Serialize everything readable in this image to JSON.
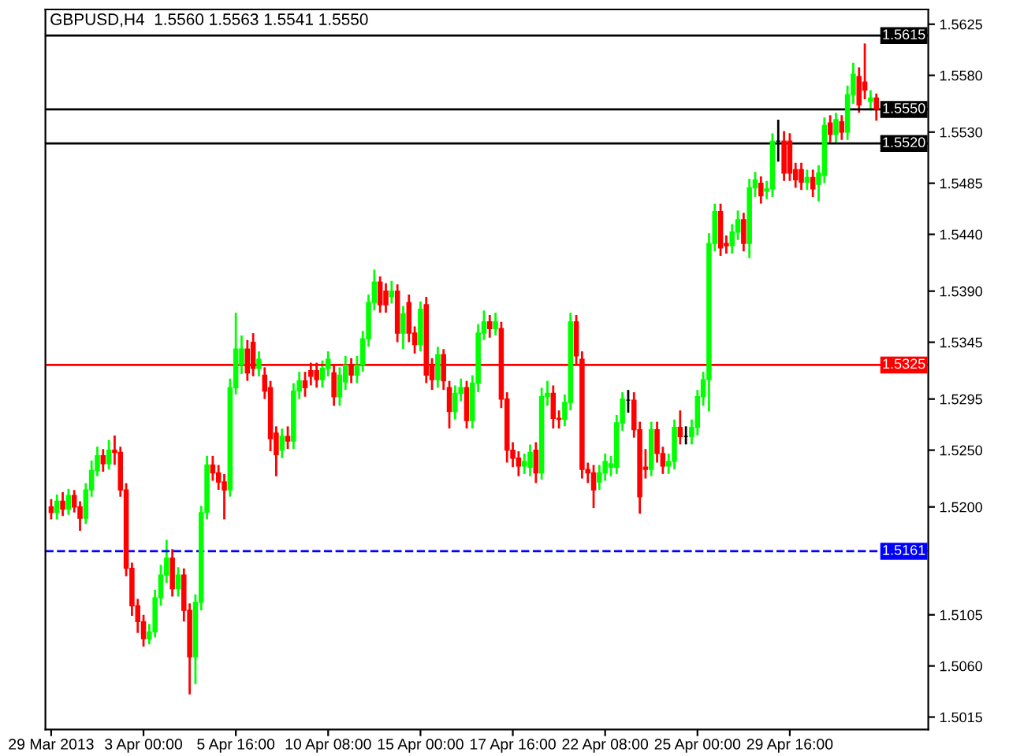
{
  "chart_data": {
    "type": "candlestick",
    "title": "GBPUSD,H4  1.5560 1.5563 1.5541 1.5550",
    "categories": [
      "29 Mar 2013",
      null,
      null,
      null,
      null,
      null,
      null,
      null,
      null,
      null,
      null,
      null,
      null,
      null,
      null,
      null,
      "3 Apr 00:00",
      null,
      null,
      null,
      null,
      null,
      null,
      null,
      null,
      null,
      null,
      null,
      null,
      null,
      null,
      null,
      "5 Apr 16:00",
      null,
      null,
      null,
      null,
      null,
      null,
      null,
      null,
      null,
      null,
      null,
      null,
      null,
      null,
      null,
      "10 Apr 08:00",
      null,
      null,
      null,
      null,
      null,
      null,
      null,
      null,
      null,
      null,
      null,
      null,
      null,
      null,
      null,
      "15 Apr 00:00",
      null,
      null,
      null,
      null,
      null,
      null,
      null,
      null,
      null,
      null,
      null,
      null,
      null,
      null,
      null,
      "17 Apr 16:00",
      null,
      null,
      null,
      null,
      null,
      null,
      null,
      null,
      null,
      null,
      null,
      null,
      null,
      null,
      null,
      "22 Apr 08:00",
      null,
      null,
      null,
      null,
      null,
      null,
      null,
      null,
      null,
      null,
      null,
      null,
      null,
      null,
      null,
      "25 Apr 00:00",
      null,
      null,
      null,
      null,
      null,
      null,
      null,
      null,
      null,
      null,
      null,
      null,
      null,
      null,
      null,
      "29 Apr 16:00",
      null,
      null,
      null,
      null,
      null,
      null,
      null,
      null,
      null,
      null,
      null,
      null,
      null,
      null,
      null
    ],
    "ohlc": [
      [
        1.52,
        1.5206,
        1.519,
        1.5195
      ],
      [
        1.5195,
        1.521,
        1.519,
        1.5205
      ],
      [
        1.5205,
        1.5212,
        1.5193,
        1.5198
      ],
      [
        1.5198,
        1.5215,
        1.5194,
        1.521
      ],
      [
        1.521,
        1.5214,
        1.5196,
        1.52
      ],
      [
        1.52,
        1.5204,
        1.518,
        1.519
      ],
      [
        1.519,
        1.522,
        1.5186,
        1.5215
      ],
      [
        1.5215,
        1.524,
        1.521,
        1.5232
      ],
      [
        1.5232,
        1.5252,
        1.5228,
        1.5245
      ],
      [
        1.5245,
        1.525,
        1.5232,
        1.5238
      ],
      [
        1.5238,
        1.5258,
        1.5234,
        1.525
      ],
      [
        1.525,
        1.5262,
        1.5238,
        1.5248
      ],
      [
        1.5248,
        1.5252,
        1.521,
        1.5215
      ],
      [
        1.5215,
        1.522,
        1.514,
        1.5146
      ],
      [
        1.5146,
        1.515,
        1.5105,
        1.5113
      ],
      [
        1.5113,
        1.5118,
        1.509,
        1.5099
      ],
      [
        1.5099,
        1.5104,
        1.5078,
        1.5084
      ],
      [
        1.5084,
        1.5096,
        1.508,
        1.509
      ],
      [
        1.509,
        1.5126,
        1.5086,
        1.512
      ],
      [
        1.512,
        1.5148,
        1.5114,
        1.514
      ],
      [
        1.514,
        1.517,
        1.5134,
        1.5155
      ],
      [
        1.5155,
        1.5162,
        1.5122,
        1.5128
      ],
      [
        1.5128,
        1.5146,
        1.5122,
        1.514
      ],
      [
        1.514,
        1.5145,
        1.51,
        1.5109
      ],
      [
        1.5109,
        1.5114,
        1.5036,
        1.5068
      ],
      [
        1.5068,
        1.5122,
        1.5045,
        1.5116
      ],
      [
        1.5116,
        1.52,
        1.511,
        1.5195
      ],
      [
        1.5195,
        1.5244,
        1.519,
        1.5237
      ],
      [
        1.5237,
        1.5244,
        1.5224,
        1.523
      ],
      [
        1.523,
        1.5236,
        1.5216,
        1.5222
      ],
      [
        1.5222,
        1.5228,
        1.519,
        1.5215
      ],
      [
        1.5215,
        1.5312,
        1.521,
        1.5305
      ],
      [
        1.5305,
        1.537,
        1.53,
        1.5339
      ],
      [
        1.5325,
        1.535,
        1.5318,
        1.5339
      ],
      [
        1.5339,
        1.5346,
        1.5312,
        1.5318
      ],
      [
        1.5345,
        1.5352,
        1.5316,
        1.5322
      ],
      [
        1.5322,
        1.5336,
        1.5316,
        1.533
      ],
      [
        1.5316,
        1.5322,
        1.5296,
        1.5302
      ],
      [
        1.5305,
        1.531,
        1.525,
        1.526
      ],
      [
        1.5265,
        1.527,
        1.5228,
        1.5246
      ],
      [
        1.525,
        1.5268,
        1.5244,
        1.5262
      ],
      [
        1.5262,
        1.527,
        1.5252,
        1.5258
      ],
      [
        1.5258,
        1.5308,
        1.5252,
        1.5302
      ],
      [
        1.5302,
        1.5318,
        1.5296,
        1.5311
      ],
      [
        1.5311,
        1.5318,
        1.5298,
        1.5305
      ],
      [
        1.532,
        1.5326,
        1.5308,
        1.5315
      ],
      [
        1.532,
        1.5326,
        1.5306,
        1.5312
      ],
      [
        1.5312,
        1.5328,
        1.5306,
        1.5322
      ],
      [
        1.5322,
        1.5336,
        1.5316,
        1.533
      ],
      [
        1.5318,
        1.5324,
        1.529,
        1.5297
      ],
      [
        1.5297,
        1.5322,
        1.529,
        1.5316
      ],
      [
        1.531,
        1.5332,
        1.5304,
        1.5325
      ],
      [
        1.5325,
        1.533,
        1.531,
        1.5316
      ],
      [
        1.5316,
        1.5332,
        1.531,
        1.5325
      ],
      [
        1.5325,
        1.5354,
        1.532,
        1.5348
      ],
      [
        1.5348,
        1.5386,
        1.5342,
        1.538
      ],
      [
        1.538,
        1.5408,
        1.5374,
        1.5398
      ],
      [
        1.5398,
        1.5402,
        1.5372,
        1.5378
      ],
      [
        1.539,
        1.5396,
        1.5372,
        1.5378
      ],
      [
        1.5385,
        1.5398,
        1.538,
        1.539
      ],
      [
        1.539,
        1.5395,
        1.5346,
        1.5353
      ],
      [
        1.5353,
        1.5376,
        1.534,
        1.537
      ],
      [
        1.538,
        1.5386,
        1.5346,
        1.5353
      ],
      [
        1.5353,
        1.5358,
        1.5336,
        1.5343
      ],
      [
        1.5343,
        1.538,
        1.5338,
        1.5374
      ],
      [
        1.5378,
        1.5384,
        1.531,
        1.5316
      ],
      [
        1.5325,
        1.533,
        1.5304,
        1.5312
      ],
      [
        1.5312,
        1.534,
        1.5306,
        1.5334
      ],
      [
        1.5334,
        1.5338,
        1.5304,
        1.5311
      ],
      [
        1.5305,
        1.531,
        1.527,
        1.5284
      ],
      [
        1.5284,
        1.5306,
        1.5278,
        1.53
      ],
      [
        1.53,
        1.5312,
        1.5294,
        1.5305
      ],
      [
        1.5305,
        1.531,
        1.527,
        1.5276
      ],
      [
        1.5276,
        1.5315,
        1.527,
        1.5309
      ],
      [
        1.5309,
        1.536,
        1.5302,
        1.5353
      ],
      [
        1.5353,
        1.5372,
        1.5348,
        1.5363
      ],
      [
        1.5363,
        1.5368,
        1.535,
        1.5357
      ],
      [
        1.5357,
        1.537,
        1.5352,
        1.5363
      ],
      [
        1.5357,
        1.5362,
        1.5288,
        1.5295
      ],
      [
        1.5295,
        1.53,
        1.524,
        1.525
      ],
      [
        1.525,
        1.5256,
        1.5236,
        1.5243
      ],
      [
        1.5243,
        1.5248,
        1.5228,
        1.5236
      ],
      [
        1.5236,
        1.5246,
        1.523,
        1.524
      ],
      [
        1.5235,
        1.5254,
        1.5228,
        1.5248
      ],
      [
        1.525,
        1.5256,
        1.5222,
        1.523
      ],
      [
        1.523,
        1.5304,
        1.5225,
        1.5297
      ],
      [
        1.5297,
        1.531,
        1.529,
        1.53
      ],
      [
        1.53,
        1.5306,
        1.527,
        1.5278
      ],
      [
        1.5278,
        1.5284,
        1.527,
        1.5277
      ],
      [
        1.5277,
        1.5298,
        1.5272,
        1.5292
      ],
      [
        1.5292,
        1.537,
        1.5286,
        1.5363
      ],
      [
        1.5363,
        1.5368,
        1.5326,
        1.5333
      ],
      [
        1.533,
        1.5336,
        1.5226,
        1.5233
      ],
      [
        1.5233,
        1.5238,
        1.5222,
        1.523
      ],
      [
        1.523,
        1.5236,
        1.52,
        1.5215
      ],
      [
        1.5222,
        1.5236,
        1.5216,
        1.523
      ],
      [
        1.523,
        1.5246,
        1.5224,
        1.524
      ],
      [
        1.5235,
        1.5244,
        1.5228,
        1.5238
      ],
      [
        1.5235,
        1.528,
        1.523,
        1.5274
      ],
      [
        1.5274,
        1.53,
        1.5268,
        1.5295
      ],
      [
        1.5294,
        1.5302,
        1.5284,
        1.5294
      ],
      [
        1.5294,
        1.53,
        1.5262,
        1.5268
      ],
      [
        1.5268,
        1.5274,
        1.5195,
        1.5209
      ],
      [
        1.5235,
        1.525,
        1.5226,
        1.5233
      ],
      [
        1.5233,
        1.5274,
        1.5228,
        1.5268
      ],
      [
        1.5268,
        1.5274,
        1.524,
        1.5247
      ],
      [
        1.5247,
        1.5252,
        1.523,
        1.5236
      ],
      [
        1.5236,
        1.5246,
        1.523,
        1.524
      ],
      [
        1.524,
        1.5276,
        1.5234,
        1.527
      ],
      [
        1.527,
        1.5284,
        1.5256,
        1.5262
      ],
      [
        1.5262,
        1.527,
        1.5256,
        1.5262
      ],
      [
        1.5262,
        1.5276,
        1.5256,
        1.527
      ],
      [
        1.527,
        1.5302,
        1.5264,
        1.5297
      ],
      [
        1.5297,
        1.5318,
        1.529,
        1.5312
      ],
      [
        1.5312,
        1.544,
        1.5285,
        1.5432
      ],
      [
        1.5432,
        1.5466,
        1.5426,
        1.546
      ],
      [
        1.546,
        1.5466,
        1.5422,
        1.5428
      ],
      [
        1.5432,
        1.5438,
        1.5424,
        1.543
      ],
      [
        1.543,
        1.5448,
        1.5424,
        1.5442
      ],
      [
        1.5442,
        1.546,
        1.5436,
        1.5453
      ],
      [
        1.5453,
        1.5458,
        1.5426,
        1.5432
      ],
      [
        1.5432,
        1.5488,
        1.542,
        1.5481
      ],
      [
        1.5481,
        1.5494,
        1.5474,
        1.5488
      ],
      [
        1.5485,
        1.549,
        1.5468,
        1.5474
      ],
      [
        1.5478,
        1.5486,
        1.5472,
        1.548
      ],
      [
        1.548,
        1.5528,
        1.5474,
        1.5522
      ],
      [
        1.5522,
        1.554,
        1.5505,
        1.5522
      ],
      [
        1.5522,
        1.553,
        1.5488,
        1.5494
      ],
      [
        1.5522,
        1.5528,
        1.5488,
        1.5494
      ],
      [
        1.5497,
        1.5502,
        1.5482,
        1.5488
      ],
      [
        1.5497,
        1.5502,
        1.548,
        1.5486
      ],
      [
        1.5486,
        1.5496,
        1.548,
        1.549
      ],
      [
        1.549,
        1.5496,
        1.5474,
        1.548
      ],
      [
        1.5484,
        1.55,
        1.547,
        1.5494
      ],
      [
        1.5492,
        1.5542,
        1.5486,
        1.5536
      ],
      [
        1.5538,
        1.5544,
        1.5522,
        1.5528
      ],
      [
        1.5528,
        1.5546,
        1.5522,
        1.5541
      ],
      [
        1.5539,
        1.5544,
        1.5524,
        1.553
      ],
      [
        1.553,
        1.557,
        1.5524,
        1.5563
      ],
      [
        1.5563,
        1.559,
        1.5556,
        1.5581
      ],
      [
        1.5579,
        1.5586,
        1.5548,
        1.5554
      ],
      [
        1.5574,
        1.5607,
        1.556,
        1.5567
      ],
      [
        1.5557,
        1.5566,
        1.555,
        1.556
      ],
      [
        1.556,
        1.5563,
        1.5541,
        1.555
      ]
    ],
    "ylim": [
      1.5004,
      1.5638
    ],
    "yticks": [
      {
        "value": 1.5625,
        "label": "1.5625"
      },
      {
        "value": 1.558,
        "label": "1.5580"
      },
      {
        "value": 1.553,
        "label": "1.5530"
      },
      {
        "value": 1.5485,
        "label": "1.5485"
      },
      {
        "value": 1.544,
        "label": "1.5440"
      },
      {
        "value": 1.539,
        "label": "1.5390"
      },
      {
        "value": 1.5345,
        "label": "1.5345"
      },
      {
        "value": 1.5295,
        "label": "1.5295"
      },
      {
        "value": 1.525,
        "label": "1.5250"
      },
      {
        "value": 1.52,
        "label": "1.5200"
      },
      {
        "value": 1.5105,
        "label": "1.5105"
      },
      {
        "value": 1.506,
        "label": "1.5060"
      },
      {
        "value": 1.5015,
        "label": "1.5015"
      }
    ],
    "ref_lines": [
      {
        "axis": "y",
        "value": 1.5615,
        "label": "1.5615",
        "color": "#000000",
        "line_style": "solid"
      },
      {
        "axis": "y",
        "value": 1.555,
        "label": "1.5550",
        "color": "#000000",
        "line_style": "solid"
      },
      {
        "axis": "y",
        "value": 1.552,
        "label": "1.5520",
        "color": "#000000",
        "line_style": "solid"
      },
      {
        "axis": "y",
        "value": 1.5325,
        "label": "1.5325",
        "color": "#ff0000",
        "line_style": "solid"
      },
      {
        "axis": "y",
        "value": 1.5161,
        "label": "1.5161",
        "color": "#0000ff",
        "line_style": "dashed"
      }
    ],
    "grid": false,
    "legend": false
  }
}
